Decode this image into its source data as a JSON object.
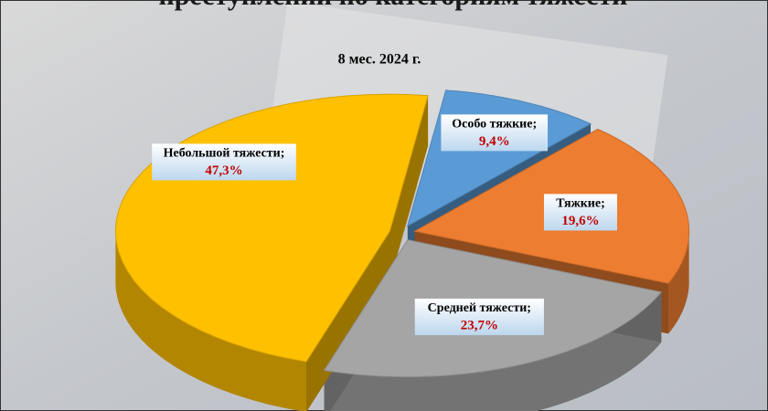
{
  "chart_data": {
    "type": "pie",
    "title": "преступлений по категориям тяжести",
    "subtitle": "8 мес. 2024 г.",
    "categories": [
      "Особо тяжкие;",
      "Тяжкие;",
      "Средней тяжести;",
      "Небольшой тяжести;"
    ],
    "values": [
      9.4,
      19.6,
      23.7,
      47.3
    ],
    "value_labels": [
      "9,4%",
      "19,6%",
      "23,7%",
      "47,3%"
    ],
    "colors": [
      "#5b9bd5",
      "#ed7d31",
      "#a5a5a5",
      "#ffc000"
    ]
  }
}
